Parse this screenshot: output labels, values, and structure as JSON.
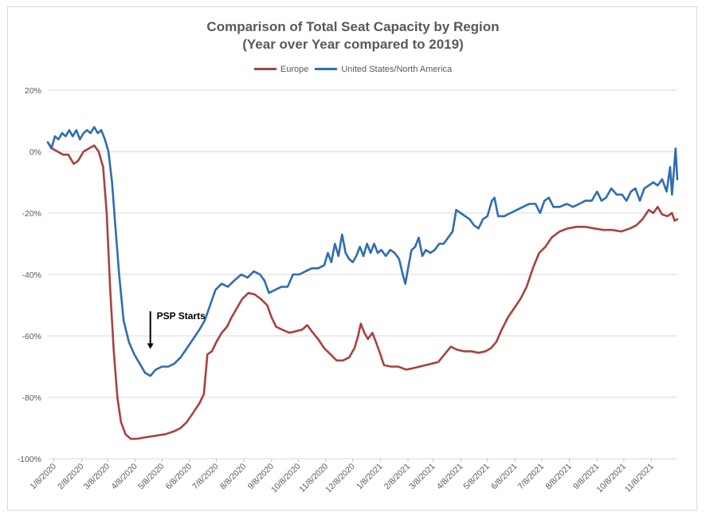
{
  "title_line1": "Comparison of Total Seat Capacity by Region",
  "title_line2": "(Year over Year compared to 2019)",
  "chart_data": {
    "type": "line",
    "title": "Comparison of Total Seat Capacity by Region (Year over Year compared to 2019)",
    "xlabel": "",
    "ylabel": "",
    "ylim": [
      -100,
      20
    ],
    "y_ticks": [
      20,
      0,
      -20,
      -40,
      -60,
      -80,
      -100
    ],
    "y_tick_labels": [
      "20%",
      "0%",
      "-20%",
      "-40%",
      "-60%",
      "-80%",
      "-100%"
    ],
    "x_tick_labels": [
      "1/8/2020",
      "2/8/2020",
      "3/8/2020",
      "4/8/2020",
      "5/8/2020",
      "6/8/2020",
      "7/8/2020",
      "8/8/2020",
      "9/8/2020",
      "10/8/2020",
      "11/8/2020",
      "12/8/2020",
      "1/8/2021",
      "2/8/2021",
      "3/8/2021",
      "4/8/2021",
      "5/8/2021",
      "6/8/2021",
      "7/8/2021",
      "8/8/2021",
      "9/8/2021",
      "10/8/2021",
      "11/8/2021"
    ],
    "x_range": [
      "2020-01-01",
      "2021-12-07"
    ],
    "grid": "horizontal",
    "legend_position": "top",
    "series": [
      {
        "name": "Europe",
        "color": "#a9413f",
        "points": [
          [
            "2020-01-01",
            3
          ],
          [
            "2020-01-06",
            1
          ],
          [
            "2020-01-12",
            0
          ],
          [
            "2020-01-18",
            -1
          ],
          [
            "2020-01-24",
            -1
          ],
          [
            "2020-01-30",
            -4
          ],
          [
            "2020-02-04",
            -3
          ],
          [
            "2020-02-10",
            0
          ],
          [
            "2020-02-16",
            1
          ],
          [
            "2020-02-22",
            2
          ],
          [
            "2020-02-27",
            0
          ],
          [
            "2020-03-03",
            -5
          ],
          [
            "2020-03-07",
            -20
          ],
          [
            "2020-03-11",
            -45
          ],
          [
            "2020-03-15",
            -65
          ],
          [
            "2020-03-19",
            -80
          ],
          [
            "2020-03-23",
            -88
          ],
          [
            "2020-03-28",
            -92
          ],
          [
            "2020-04-03",
            -93.5
          ],
          [
            "2020-04-10",
            -93.5
          ],
          [
            "2020-04-20",
            -93
          ],
          [
            "2020-05-01",
            -92.5
          ],
          [
            "2020-05-12",
            -92
          ],
          [
            "2020-05-22",
            -91
          ],
          [
            "2020-05-29",
            -90
          ],
          [
            "2020-06-05",
            -88
          ],
          [
            "2020-06-12",
            -85
          ],
          [
            "2020-06-19",
            -82
          ],
          [
            "2020-06-24",
            -79
          ],
          [
            "2020-06-28",
            -66
          ],
          [
            "2020-07-03",
            -65
          ],
          [
            "2020-07-08",
            -62
          ],
          [
            "2020-07-14",
            -59
          ],
          [
            "2020-07-20",
            -57
          ],
          [
            "2020-07-25",
            -54
          ],
          [
            "2020-07-31",
            -51
          ],
          [
            "2020-08-06",
            -48
          ],
          [
            "2020-08-13",
            -46
          ],
          [
            "2020-08-20",
            -46.5
          ],
          [
            "2020-08-27",
            -48
          ],
          [
            "2020-09-03",
            -50
          ],
          [
            "2020-09-08",
            -54
          ],
          [
            "2020-09-13",
            -57
          ],
          [
            "2020-09-20",
            -58
          ],
          [
            "2020-09-28",
            -59
          ],
          [
            "2020-10-05",
            -58.5
          ],
          [
            "2020-10-12",
            -58
          ],
          [
            "2020-10-18",
            -56.5
          ],
          [
            "2020-10-23",
            -58.5
          ],
          [
            "2020-10-30",
            -61
          ],
          [
            "2020-11-06",
            -64
          ],
          [
            "2020-11-13",
            -66
          ],
          [
            "2020-11-20",
            -68
          ],
          [
            "2020-11-27",
            -68
          ],
          [
            "2020-12-04",
            -67
          ],
          [
            "2020-12-10",
            -64
          ],
          [
            "2020-12-14",
            -60
          ],
          [
            "2020-12-17",
            -56
          ],
          [
            "2020-12-21",
            -59
          ],
          [
            "2020-12-25",
            -61
          ],
          [
            "2020-12-30",
            -59
          ],
          [
            "2021-01-03",
            -62
          ],
          [
            "2021-01-08",
            -66
          ],
          [
            "2021-01-12",
            -69.5
          ],
          [
            "2021-01-20",
            -70
          ],
          [
            "2021-01-28",
            -70
          ],
          [
            "2021-02-06",
            -71
          ],
          [
            "2021-02-14",
            -70.5
          ],
          [
            "2021-02-21",
            -70
          ],
          [
            "2021-02-28",
            -69.5
          ],
          [
            "2021-03-07",
            -69
          ],
          [
            "2021-03-14",
            -68.5
          ],
          [
            "2021-03-21",
            -66
          ],
          [
            "2021-03-28",
            -63.5
          ],
          [
            "2021-04-04",
            -64.5
          ],
          [
            "2021-04-12",
            -65
          ],
          [
            "2021-04-20",
            -65
          ],
          [
            "2021-04-28",
            -65.5
          ],
          [
            "2021-05-06",
            -65
          ],
          [
            "2021-05-12",
            -64
          ],
          [
            "2021-05-18",
            -62
          ],
          [
            "2021-05-24",
            -58
          ],
          [
            "2021-05-31",
            -54
          ],
          [
            "2021-06-07",
            -51
          ],
          [
            "2021-06-14",
            -48
          ],
          [
            "2021-06-21",
            -44
          ],
          [
            "2021-06-28",
            -38
          ],
          [
            "2021-07-05",
            -33
          ],
          [
            "2021-07-12",
            -31
          ],
          [
            "2021-07-19",
            -28
          ],
          [
            "2021-07-28",
            -26
          ],
          [
            "2021-08-06",
            -25
          ],
          [
            "2021-08-16",
            -24.5
          ],
          [
            "2021-08-26",
            -24.5
          ],
          [
            "2021-09-05",
            -25
          ],
          [
            "2021-09-15",
            -25.5
          ],
          [
            "2021-09-25",
            -25.5
          ],
          [
            "2021-10-05",
            -26
          ],
          [
            "2021-10-15",
            -25
          ],
          [
            "2021-10-22",
            -24
          ],
          [
            "2021-10-29",
            -22
          ],
          [
            "2021-11-05",
            -19
          ],
          [
            "2021-11-10",
            -20
          ],
          [
            "2021-11-15",
            -18
          ],
          [
            "2021-11-20",
            -20.5
          ],
          [
            "2021-11-26",
            -21
          ],
          [
            "2021-12-01",
            -20
          ],
          [
            "2021-12-04",
            -22.5
          ],
          [
            "2021-12-07",
            -22
          ]
        ]
      },
      {
        "name": "United States/North America",
        "color": "#2e6db4",
        "points": [
          [
            "2020-01-01",
            3
          ],
          [
            "2020-01-05",
            1
          ],
          [
            "2020-01-09",
            5
          ],
          [
            "2020-01-13",
            4
          ],
          [
            "2020-01-17",
            6
          ],
          [
            "2020-01-21",
            5
          ],
          [
            "2020-01-25",
            7
          ],
          [
            "2020-01-29",
            5
          ],
          [
            "2020-02-02",
            7
          ],
          [
            "2020-02-06",
            4
          ],
          [
            "2020-02-10",
            6
          ],
          [
            "2020-02-14",
            7
          ],
          [
            "2020-02-18",
            6
          ],
          [
            "2020-02-22",
            8
          ],
          [
            "2020-02-26",
            6
          ],
          [
            "2020-03-01",
            7
          ],
          [
            "2020-03-05",
            4
          ],
          [
            "2020-03-09",
            0
          ],
          [
            "2020-03-13",
            -10
          ],
          [
            "2020-03-17",
            -25
          ],
          [
            "2020-03-21",
            -40
          ],
          [
            "2020-03-26",
            -55
          ],
          [
            "2020-04-01",
            -62
          ],
          [
            "2020-04-07",
            -66
          ],
          [
            "2020-04-13",
            -69
          ],
          [
            "2020-04-19",
            -72
          ],
          [
            "2020-04-25",
            -73
          ],
          [
            "2020-05-01",
            -71
          ],
          [
            "2020-05-08",
            -70
          ],
          [
            "2020-05-15",
            -70
          ],
          [
            "2020-05-22",
            -69
          ],
          [
            "2020-05-29",
            -67
          ],
          [
            "2020-06-05",
            -64
          ],
          [
            "2020-06-12",
            -61
          ],
          [
            "2020-06-19",
            -58
          ],
          [
            "2020-06-25",
            -55
          ],
          [
            "2020-07-01",
            -50
          ],
          [
            "2020-07-07",
            -45
          ],
          [
            "2020-07-14",
            -43
          ],
          [
            "2020-07-21",
            -44
          ],
          [
            "2020-07-28",
            -42
          ],
          [
            "2020-08-05",
            -40
          ],
          [
            "2020-08-12",
            -41
          ],
          [
            "2020-08-19",
            -39
          ],
          [
            "2020-08-26",
            -40
          ],
          [
            "2020-08-31",
            -42
          ],
          [
            "2020-09-05",
            -46
          ],
          [
            "2020-09-12",
            -45
          ],
          [
            "2020-09-19",
            -44
          ],
          [
            "2020-09-26",
            -44
          ],
          [
            "2020-10-02",
            -40
          ],
          [
            "2020-10-09",
            -40
          ],
          [
            "2020-10-16",
            -39
          ],
          [
            "2020-10-23",
            -38
          ],
          [
            "2020-10-30",
            -38
          ],
          [
            "2020-11-06",
            -37
          ],
          [
            "2020-11-10",
            -33
          ],
          [
            "2020-11-14",
            -36
          ],
          [
            "2020-11-18",
            -30
          ],
          [
            "2020-11-22",
            -34
          ],
          [
            "2020-11-26",
            -27
          ],
          [
            "2020-11-30",
            -33
          ],
          [
            "2020-12-04",
            -35
          ],
          [
            "2020-12-08",
            -36
          ],
          [
            "2020-12-12",
            -34
          ],
          [
            "2020-12-16",
            -31
          ],
          [
            "2020-12-20",
            -34
          ],
          [
            "2020-12-24",
            -30
          ],
          [
            "2020-12-28",
            -33
          ],
          [
            "2021-01-01",
            -30
          ],
          [
            "2021-01-05",
            -33
          ],
          [
            "2021-01-09",
            -32
          ],
          [
            "2021-01-14",
            -34
          ],
          [
            "2021-01-19",
            -32
          ],
          [
            "2021-01-24",
            -33
          ],
          [
            "2021-01-29",
            -35
          ],
          [
            "2021-02-02",
            -40
          ],
          [
            "2021-02-05",
            -43
          ],
          [
            "2021-02-08",
            -38
          ],
          [
            "2021-02-12",
            -32
          ],
          [
            "2021-02-16",
            -31
          ],
          [
            "2021-02-20",
            -28
          ],
          [
            "2021-02-24",
            -34
          ],
          [
            "2021-02-28",
            -32
          ],
          [
            "2021-03-05",
            -33
          ],
          [
            "2021-03-10",
            -32
          ],
          [
            "2021-03-15",
            -30
          ],
          [
            "2021-03-20",
            -30
          ],
          [
            "2021-03-25",
            -28
          ],
          [
            "2021-03-30",
            -26
          ],
          [
            "2021-04-03",
            -19
          ],
          [
            "2021-04-08",
            -20
          ],
          [
            "2021-04-13",
            -21
          ],
          [
            "2021-04-18",
            -22
          ],
          [
            "2021-04-23",
            -24
          ],
          [
            "2021-04-28",
            -25
          ],
          [
            "2021-05-03",
            -22
          ],
          [
            "2021-05-08",
            -21
          ],
          [
            "2021-05-13",
            -16
          ],
          [
            "2021-05-16",
            -15
          ],
          [
            "2021-05-20",
            -21
          ],
          [
            "2021-05-27",
            -21
          ],
          [
            "2021-06-03",
            -20
          ],
          [
            "2021-06-10",
            -19
          ],
          [
            "2021-06-17",
            -18
          ],
          [
            "2021-06-24",
            -17
          ],
          [
            "2021-07-01",
            -17
          ],
          [
            "2021-07-06",
            -20
          ],
          [
            "2021-07-11",
            -16
          ],
          [
            "2021-07-16",
            -15
          ],
          [
            "2021-07-21",
            -18
          ],
          [
            "2021-07-28",
            -18
          ],
          [
            "2021-08-05",
            -17
          ],
          [
            "2021-08-12",
            -18
          ],
          [
            "2021-08-19",
            -17
          ],
          [
            "2021-08-26",
            -16
          ],
          [
            "2021-09-02",
            -16
          ],
          [
            "2021-09-08",
            -13
          ],
          [
            "2021-09-13",
            -16
          ],
          [
            "2021-09-18",
            -15
          ],
          [
            "2021-09-24",
            -12
          ],
          [
            "2021-09-30",
            -14
          ],
          [
            "2021-10-06",
            -14
          ],
          [
            "2021-10-11",
            -16
          ],
          [
            "2021-10-16",
            -13
          ],
          [
            "2021-10-21",
            -12
          ],
          [
            "2021-10-26",
            -16
          ],
          [
            "2021-10-31",
            -12
          ],
          [
            "2021-11-05",
            -11
          ],
          [
            "2021-11-10",
            -10
          ],
          [
            "2021-11-15",
            -11
          ],
          [
            "2021-11-20",
            -9
          ],
          [
            "2021-11-25",
            -13
          ],
          [
            "2021-11-29",
            -5
          ],
          [
            "2021-12-01",
            -14
          ],
          [
            "2021-12-03",
            -7
          ],
          [
            "2021-12-05",
            1
          ],
          [
            "2021-12-07",
            -9
          ]
        ]
      }
    ],
    "annotations": [
      {
        "text": "PSP Starts",
        "date": "2020-04-25",
        "arrow_from": -52,
        "arrow_to": -64
      }
    ]
  }
}
